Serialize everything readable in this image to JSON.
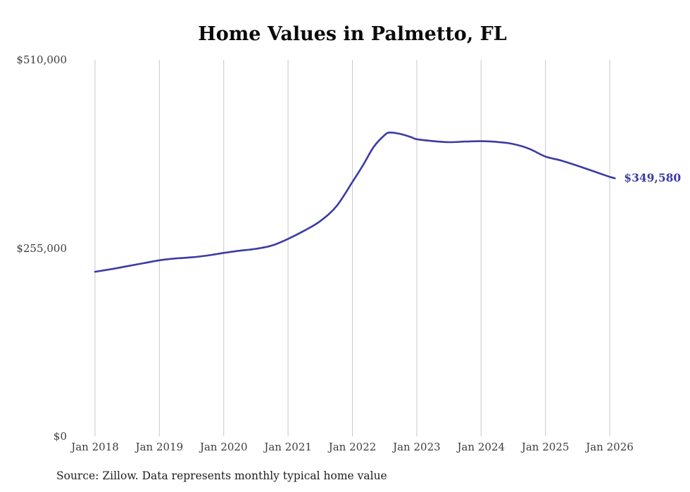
{
  "chart_data": {
    "type": "line",
    "title": "Home Values in Palmetto, FL",
    "source_note": "Source: Zillow. Data represents monthly typical home value",
    "end_label": "$349,580",
    "end_value": 349580,
    "grid": "vertical-only",
    "legend": "none",
    "colors": {
      "line": "#3b3ba6",
      "end_label": "#3b3ba6",
      "gridline": "#c9c9c9",
      "tick_text": "#3d3d3d",
      "title_text": "#0b0b0b"
    },
    "xlim": [
      2018,
      2026.08
    ],
    "ylim": [
      0,
      510000
    ],
    "x_ticks": [
      2018,
      2019,
      2020,
      2021,
      2022,
      2023,
      2024,
      2025,
      2026
    ],
    "x_tick_labels": [
      "Jan 2018",
      "Jan 2019",
      "Jan 2020",
      "Jan 2021",
      "Jan 2022",
      "Jan 2023",
      "Jan 2024",
      "Jan 2025",
      "Jan 2026"
    ],
    "y_ticks": [
      0,
      255000,
      510000
    ],
    "y_tick_labels": [
      "$0",
      "$255,000",
      "$510,000"
    ],
    "series": [
      {
        "name": "Monthly typical home value",
        "color": "#3b3ba6",
        "x": [
          2018,
          2018.25,
          2018.5,
          2018.75,
          2019,
          2019.25,
          2019.5,
          2019.75,
          2020,
          2020.25,
          2020.5,
          2020.75,
          2021,
          2021.25,
          2021.5,
          2021.75,
          2022,
          2022.17,
          2022.33,
          2022.5,
          2022.58,
          2022.75,
          2022.92,
          2023,
          2023.25,
          2023.5,
          2023.75,
          2024,
          2024.25,
          2024.5,
          2024.75,
          2025,
          2025.25,
          2025.5,
          2025.75,
          2026,
          2026.08
        ],
        "values": [
          223000,
          226500,
          230500,
          234500,
          238500,
          241000,
          242500,
          245000,
          248500,
          251500,
          254000,
          258500,
          267500,
          278500,
          291500,
          311500,
          344500,
          368000,
          392000,
          408000,
          411500,
          409500,
          405000,
          402500,
          400000,
          398500,
          399300,
          399800,
          398800,
          396000,
          389500,
          379000,
          373500,
          366500,
          359000,
          351500,
          349580
        ]
      }
    ]
  }
}
